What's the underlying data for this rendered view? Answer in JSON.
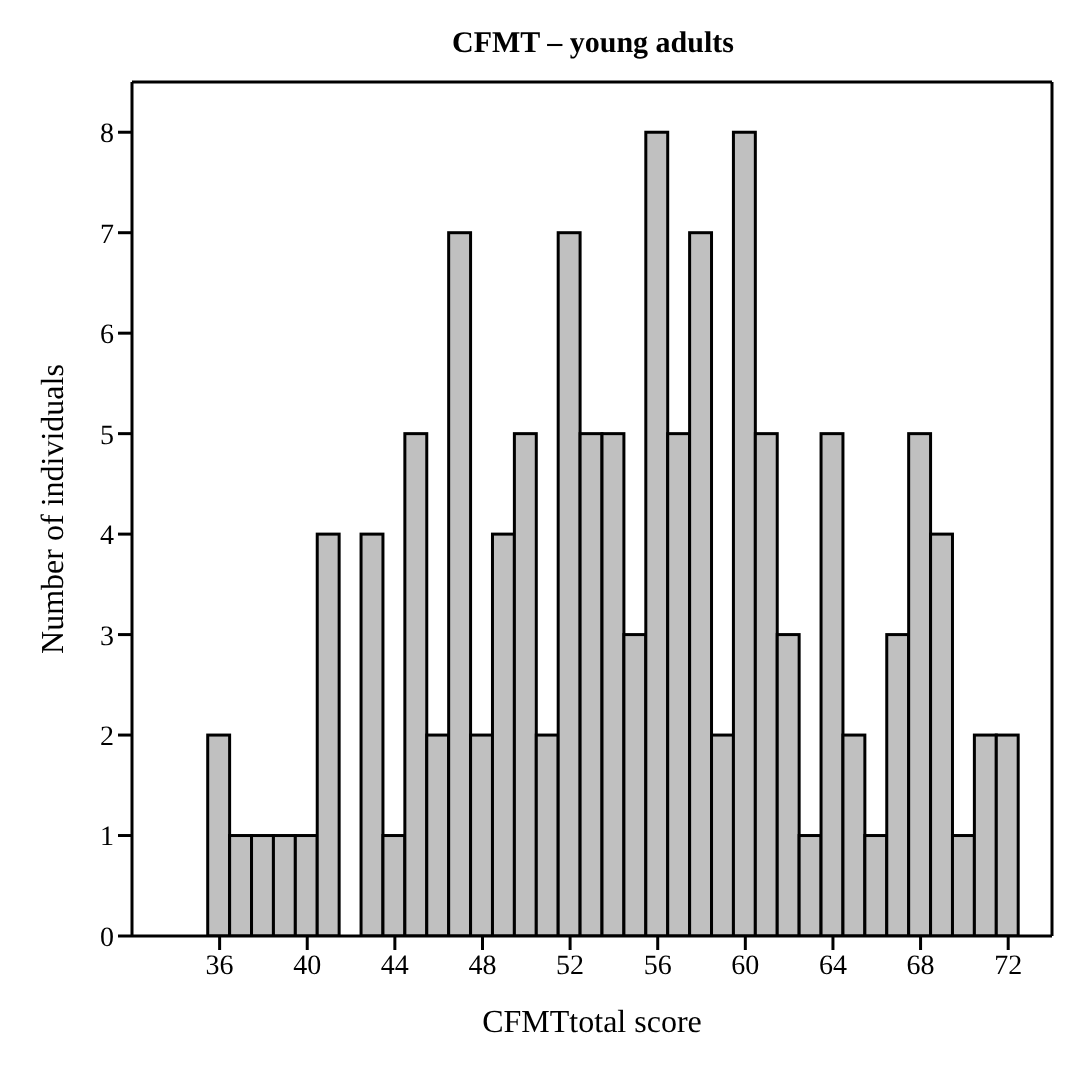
{
  "chart_data": {
    "type": "histogram",
    "title": "CFMT – young adults",
    "xlabel": "CFMTtotal score",
    "ylabel": "Number of individuals",
    "bins": [
      35.5,
      36.5,
      37.5,
      38.5,
      39.5,
      40.5,
      41.5,
      42.5,
      43.5,
      44.5,
      45.5,
      46.5,
      47.5,
      48.5,
      49.5,
      50.5,
      51.5,
      52.5,
      53.5,
      54.5,
      55.5,
      56.5,
      57.5,
      58.5,
      59.5,
      60.5,
      61.5,
      62.5,
      63.5,
      64.5,
      65.5,
      66.5,
      67.5,
      68.5,
      69.5,
      70.5,
      71.5,
      72.5
    ],
    "values": [
      2,
      1,
      1,
      1,
      1,
      4,
      0,
      4,
      1,
      5,
      2,
      7,
      2,
      4,
      5,
      2,
      7,
      5,
      5,
      3,
      8,
      5,
      7,
      2,
      8,
      5,
      3,
      1,
      5,
      2,
      1,
      3,
      5,
      4,
      1,
      2,
      2
    ],
    "color": "#c0c0c0",
    "xlim": [
      32,
      74
    ],
    "xticks": [
      36,
      40,
      44,
      48,
      52,
      56,
      60,
      64,
      68,
      72
    ],
    "ylim": [
      0,
      8.5
    ],
    "yticks": [
      0,
      1,
      2,
      3,
      4,
      5,
      6,
      7,
      8
    ],
    "grid": false
  }
}
